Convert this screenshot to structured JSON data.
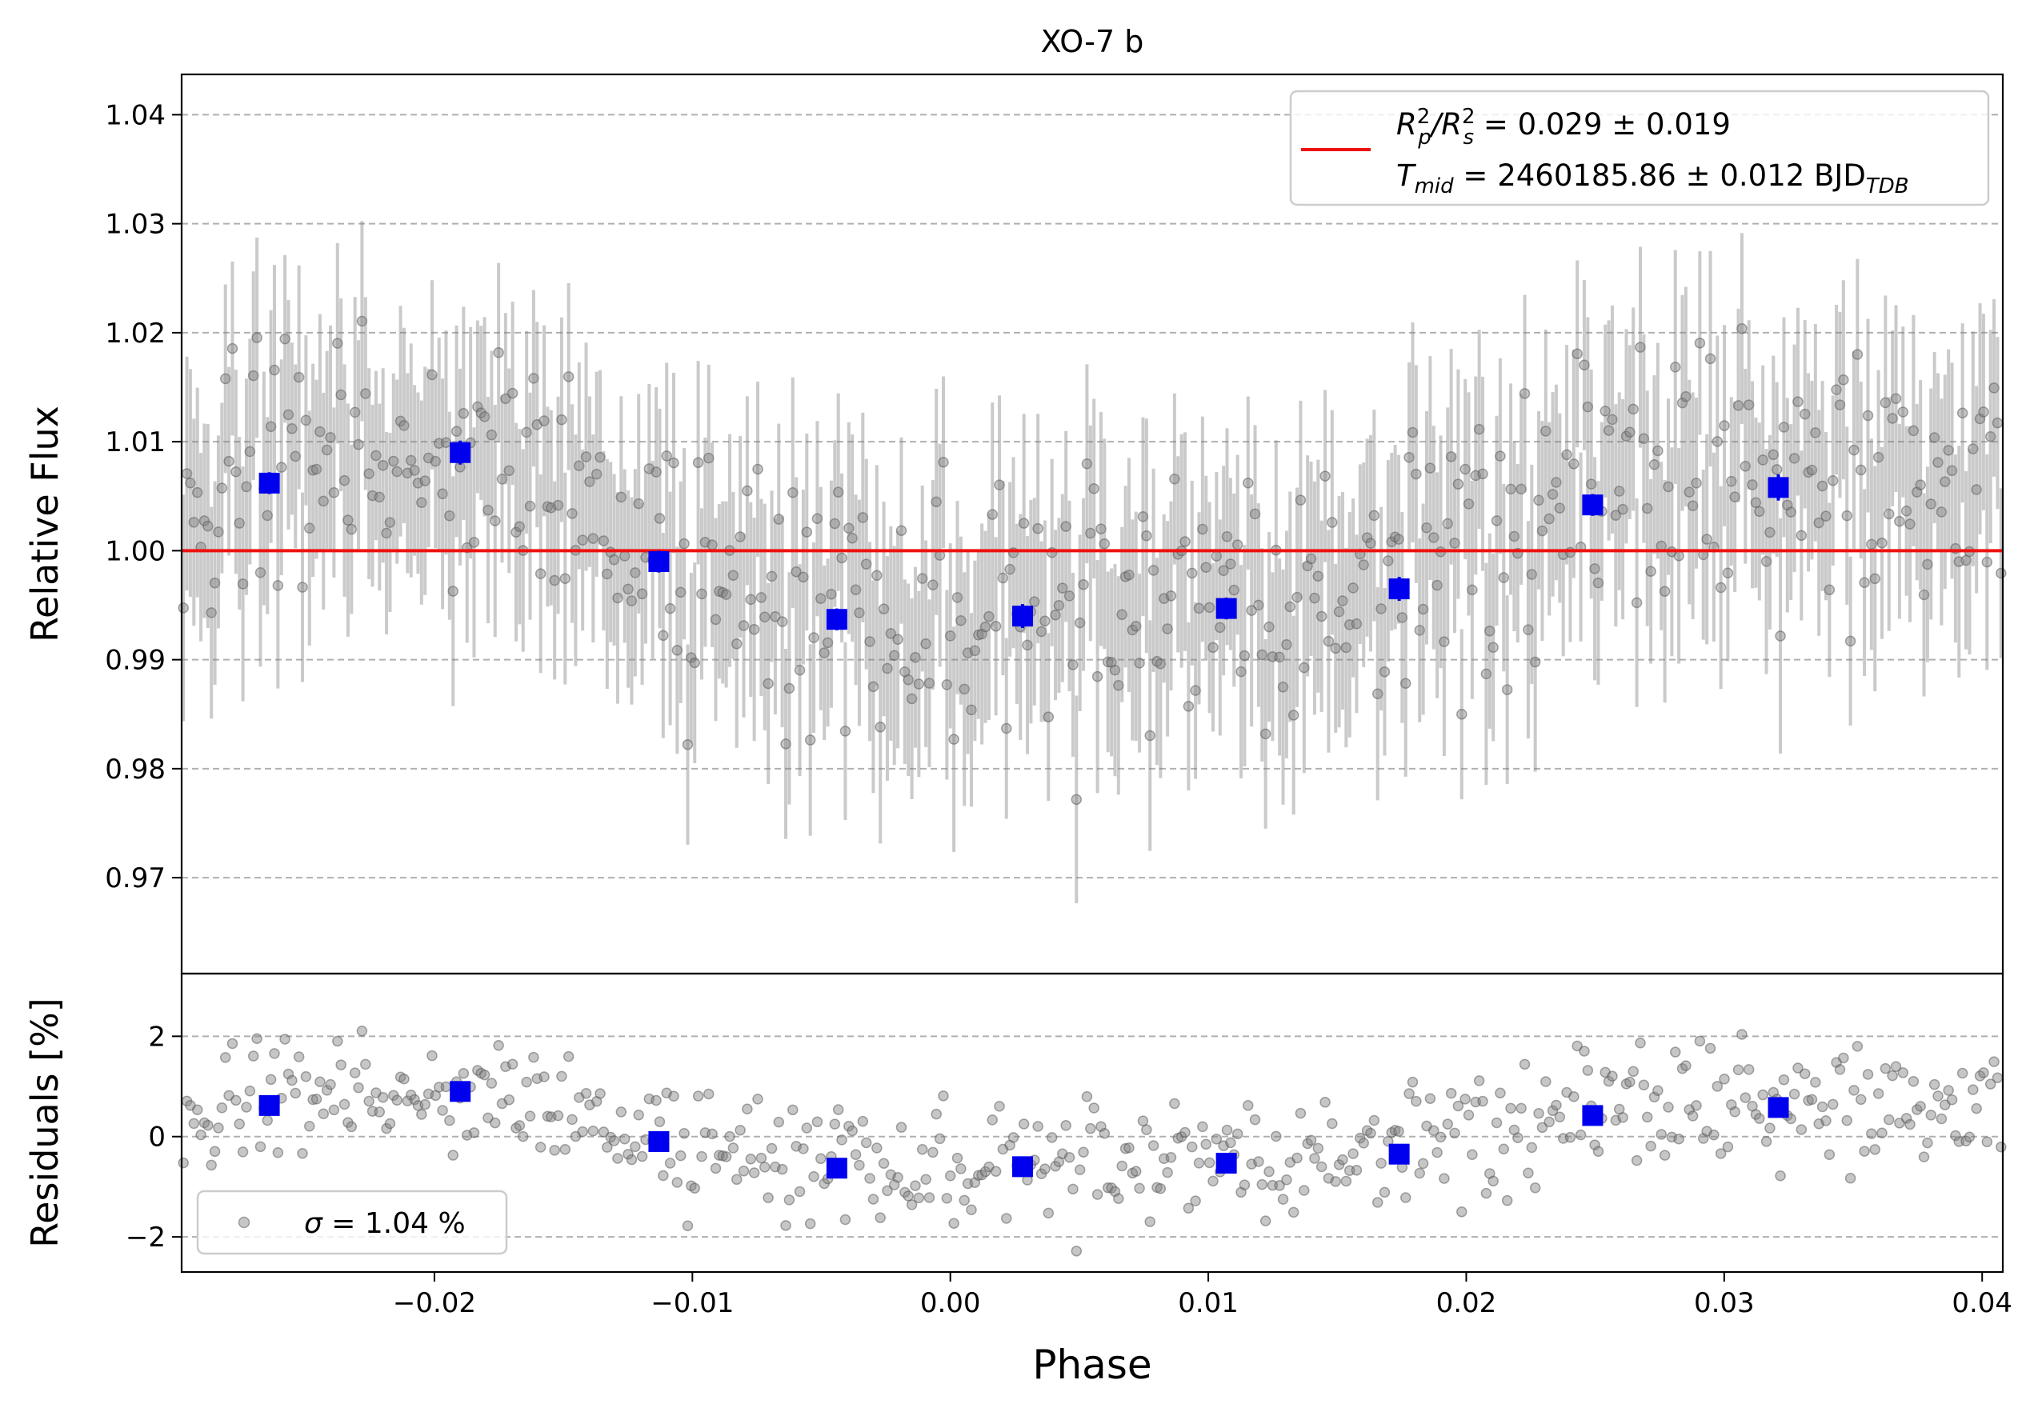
{
  "chart_data": [
    {
      "panel": "top",
      "type": "scatter",
      "title": "XO-7 b",
      "xlabel": "",
      "ylabel": "Relative Flux",
      "xlim": [
        -0.0298,
        0.0408
      ],
      "ylim": [
        0.9612,
        1.0437
      ],
      "yticks": [
        0.97,
        0.98,
        0.99,
        1.0,
        1.01,
        1.02,
        1.03,
        1.04
      ],
      "ytick_labels": [
        "0.97",
        "0.98",
        "0.99",
        "1.00",
        "1.01",
        "1.02",
        "1.03",
        "1.04"
      ],
      "grid": "y, dashed",
      "legend": {
        "placement": "top-right",
        "line1": {
          "pre": "R",
          "sup1": "2",
          "sub1": "p",
          "mid": "/R",
          "sup2": "2",
          "sub2": "s",
          "rest": " = 0.029 ± 0.019"
        },
        "line2": {
          "pre": "T",
          "sub": "mid",
          "rest": " = 2460185.86 ± 0.012 BJD",
          "sub2": "TDB"
        }
      },
      "model": {
        "name": "",
        "y": 1.0,
        "color": "#ee1111"
      },
      "binned": {
        "x": [
          -0.0264,
          -0.019,
          -0.0113,
          -0.0044,
          0.0028,
          0.0107,
          0.0174,
          0.0249,
          0.0321
        ],
        "y": [
          1.0062,
          1.009,
          0.999,
          0.9937,
          0.994,
          0.9947,
          0.9965,
          1.0042,
          1.0058
        ],
        "yerr": [
          0.001,
          0.0011,
          0.001,
          0.001,
          0.0011,
          0.001,
          0.0011,
          0.001,
          0.0012
        ],
        "color": "#0000ee"
      },
      "raw": {
        "n": 520,
        "yerr_typical": 0.009,
        "trend_phase": [
          -0.0298,
          -0.0264,
          -0.019,
          -0.0113,
          -0.0044,
          0.0028,
          0.0107,
          0.0174,
          0.0249,
          0.0321,
          0.0408
        ],
        "trend_flux": [
          1.008,
          1.0062,
          1.009,
          0.999,
          0.9937,
          0.994,
          0.9947,
          0.9965,
          1.0042,
          1.0058,
          1.0065
        ],
        "scatter": 0.0104,
        "marker_color": "#808080"
      }
    },
    {
      "panel": "bottom",
      "type": "scatter",
      "xlabel": "Phase",
      "ylabel": "Residuals [%]",
      "xlim": [
        -0.0298,
        0.0408
      ],
      "ylim": [
        -2.7,
        3.25
      ],
      "xticks": [
        -0.02,
        -0.01,
        0.0,
        0.01,
        0.02,
        0.03,
        0.04
      ],
      "xtick_labels": [
        "−0.02",
        "−0.01",
        "0.00",
        "0.01",
        "0.02",
        "0.03",
        "0.04"
      ],
      "yticks": [
        -2,
        0,
        2
      ],
      "ytick_labels": [
        "−2",
        "0",
        "2"
      ],
      "grid": "y, dashed",
      "legend": {
        "placement": "bottom-left",
        "symbol": "σ",
        "rest": " = 1.04 %"
      },
      "binned": {
        "x": [
          -0.0264,
          -0.019,
          -0.0113,
          -0.0044,
          0.0028,
          0.0107,
          0.0174,
          0.0249,
          0.0321
        ],
        "y": [
          0.62,
          0.9,
          -0.1,
          -0.63,
          -0.6,
          -0.53,
          -0.35,
          0.42,
          0.58
        ],
        "color": "#0000ee"
      }
    }
  ]
}
